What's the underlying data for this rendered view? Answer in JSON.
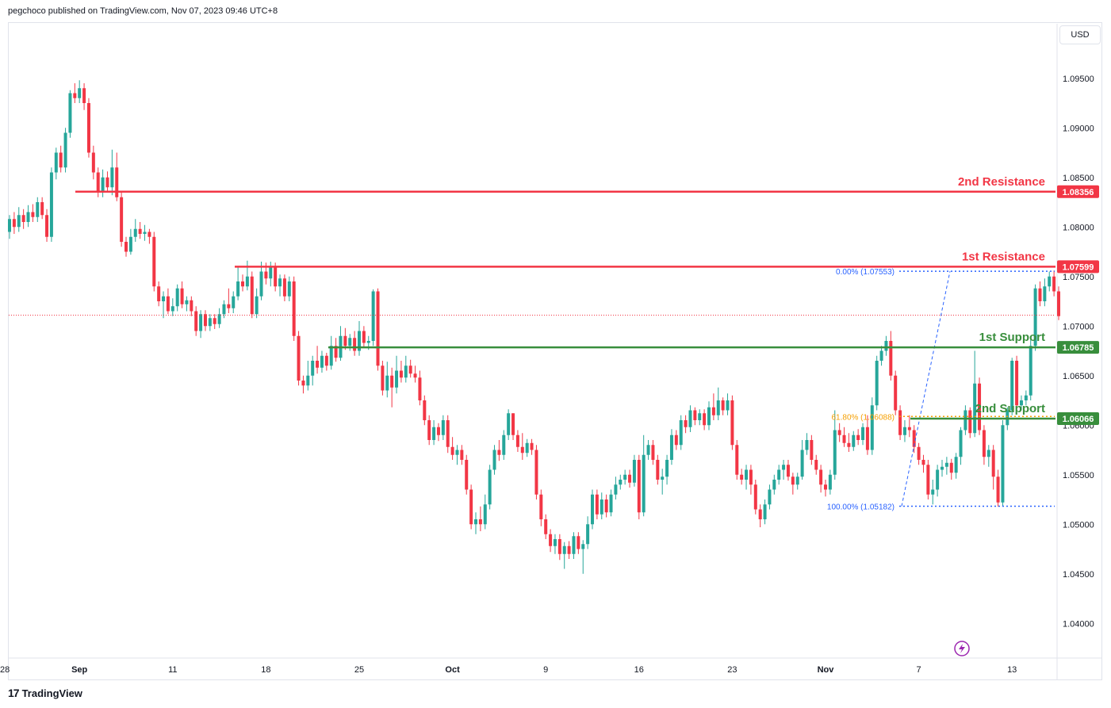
{
  "header": {
    "published": "pegchoco published on TradingView.com, Nov 07, 2023 09:46 UTC+8"
  },
  "currency_button": "USD",
  "footer": {
    "brand": "TradingView",
    "logo": "tradingview-logo"
  },
  "chart_data": {
    "type": "candlestick",
    "y_ticks": [
      "1.09500",
      "1.09000",
      "1.08500",
      "1.08000",
      "1.07500",
      "1.07000",
      "1.06500",
      "1.06000",
      "1.05500",
      "1.05000",
      "1.04500",
      "1.04000"
    ],
    "ylim": [
      1.0365,
      1.1005
    ],
    "x_ticks": [
      "28",
      "Sep",
      "11",
      "18",
      "25",
      "Oct",
      "9",
      "16",
      "23",
      "Nov",
      "7",
      "13"
    ],
    "levels": [
      {
        "label": "2nd Resistance",
        "value": "1.08356",
        "price": 1.08356,
        "color": "#f23645"
      },
      {
        "label": "1st Resistance",
        "value": "1.07599",
        "price": 1.07599,
        "color": "#f23645"
      },
      {
        "label": "1st Support",
        "value": "1.06785",
        "price": 1.06785,
        "color": "#388e3c"
      },
      {
        "label": "2nd Support",
        "value": "1.06066",
        "price": 1.06066,
        "color": "#388e3c"
      }
    ],
    "fibonacci": [
      {
        "label": "0.00% (1.07553)",
        "price": 1.07553,
        "color": "#2962ff"
      },
      {
        "label": "61.80% (1.06088)",
        "price": 1.06088,
        "color": "#f59f00"
      },
      {
        "label": "100.00% (1.05182)",
        "price": 1.05182,
        "color": "#2962ff"
      }
    ],
    "last_price": 1.0711,
    "colors": {
      "up": "#26a69a",
      "down": "#f23645"
    },
    "candles": [
      [
        1.0795,
        1.0808,
        1.0788,
        1.0812
      ],
      [
        1.0808,
        1.08,
        1.0793,
        1.0815
      ],
      [
        1.08,
        1.0812,
        1.0795,
        1.082
      ],
      [
        1.0812,
        1.0805,
        1.0798,
        1.0818
      ],
      [
        1.0805,
        1.0815,
        1.08,
        1.0822
      ],
      [
        1.0815,
        1.081,
        1.0805,
        1.0823
      ],
      [
        1.081,
        1.0825,
        1.0805,
        1.083
      ],
      [
        1.0825,
        1.0812,
        1.0808,
        1.083
      ],
      [
        1.0812,
        1.079,
        1.0785,
        1.0818
      ],
      [
        1.079,
        1.0855,
        1.0785,
        1.086
      ],
      [
        1.0855,
        1.0875,
        1.0848,
        1.088
      ],
      [
        1.0875,
        1.086,
        1.0855,
        1.0882
      ],
      [
        1.086,
        1.0895,
        1.0855,
        1.09
      ],
      [
        1.0895,
        1.0935,
        1.089,
        1.0938
      ],
      [
        1.0935,
        1.093,
        1.0925,
        1.0945
      ],
      [
        1.093,
        1.094,
        1.0925,
        1.0948
      ],
      [
        1.094,
        1.0925,
        1.0918,
        1.0945
      ],
      [
        1.0925,
        1.0875,
        1.087,
        1.093
      ],
      [
        1.0875,
        1.0855,
        1.0848,
        1.0882
      ],
      [
        1.0855,
        1.0835,
        1.083,
        1.086
      ],
      [
        1.0835,
        1.085,
        1.083,
        1.0858
      ],
      [
        1.085,
        1.084,
        1.0835,
        1.0856
      ],
      [
        1.084,
        1.086,
        1.0832,
        1.0878
      ],
      [
        1.086,
        1.083,
        1.0826,
        1.0875
      ],
      [
        1.083,
        1.0785,
        1.078,
        1.0835
      ],
      [
        1.0785,
        1.0775,
        1.077,
        1.079
      ],
      [
        1.0775,
        1.079,
        1.0772,
        1.0798
      ],
      [
        1.079,
        1.0798,
        1.0785,
        1.0808
      ],
      [
        1.0798,
        1.0793,
        1.0788,
        1.0805
      ],
      [
        1.0793,
        1.0795,
        1.0786,
        1.0802
      ],
      [
        1.0795,
        1.079,
        1.0783,
        1.0798
      ],
      [
        1.079,
        1.074,
        1.0735,
        1.0795
      ],
      [
        1.074,
        1.0725,
        1.072,
        1.0745
      ],
      [
        1.0725,
        1.073,
        1.0708,
        1.0735
      ],
      [
        1.073,
        1.0715,
        1.0712,
        1.0738
      ],
      [
        1.0715,
        1.072,
        1.071,
        1.0728
      ],
      [
        1.072,
        1.0738,
        1.0715,
        1.0742
      ],
      [
        1.0738,
        1.0722,
        1.0718,
        1.0745
      ],
      [
        1.0722,
        1.0726,
        1.0715,
        1.073
      ],
      [
        1.0726,
        1.0715,
        1.071,
        1.073
      ],
      [
        1.0715,
        1.0695,
        1.069,
        1.072
      ],
      [
        1.0695,
        1.0712,
        1.0688,
        1.0716
      ],
      [
        1.0712,
        1.07,
        1.0695,
        1.0716
      ],
      [
        1.07,
        1.0708,
        1.0695,
        1.0712
      ],
      [
        1.0708,
        1.0702,
        1.0697,
        1.0712
      ],
      [
        1.0702,
        1.0712,
        1.0698,
        1.0718
      ],
      [
        1.0712,
        1.0722,
        1.0708,
        1.0726
      ],
      [
        1.0722,
        1.0718,
        1.0713,
        1.0738
      ],
      [
        1.0718,
        1.073,
        1.0713,
        1.0735
      ],
      [
        1.073,
        1.0745,
        1.0726,
        1.076
      ],
      [
        1.0745,
        1.074,
        1.0735,
        1.0752
      ],
      [
        1.074,
        1.075,
        1.0736,
        1.0766
      ],
      [
        1.075,
        1.0712,
        1.0708,
        1.0755
      ],
      [
        1.0712,
        1.073,
        1.0708,
        1.0738
      ],
      [
        1.073,
        1.0755,
        1.0726,
        1.0765
      ],
      [
        1.0755,
        1.0748,
        1.0742,
        1.0764
      ],
      [
        1.0748,
        1.076,
        1.074,
        1.0765
      ],
      [
        1.076,
        1.074,
        1.0735,
        1.0764
      ],
      [
        1.074,
        1.0748,
        1.073,
        1.0752
      ],
      [
        1.0748,
        1.073,
        1.0725,
        1.0752
      ],
      [
        1.073,
        1.0745,
        1.0725,
        1.075
      ],
      [
        1.0745,
        1.069,
        1.0685,
        1.075
      ],
      [
        1.069,
        1.0645,
        1.064,
        1.0695
      ],
      [
        1.0645,
        1.064,
        1.0632,
        1.065
      ],
      [
        1.064,
        1.065,
        1.0635,
        1.0665
      ],
      [
        1.065,
        1.0665,
        1.064,
        1.067
      ],
      [
        1.0665,
        1.0658,
        1.0652,
        1.068
      ],
      [
        1.0658,
        1.067,
        1.0653,
        1.0675
      ],
      [
        1.067,
        1.066,
        1.0655,
        1.0673
      ],
      [
        1.066,
        1.068,
        1.0656,
        1.069
      ],
      [
        1.068,
        1.0668,
        1.0664,
        1.0688
      ],
      [
        1.0668,
        1.069,
        1.0665,
        1.07
      ],
      [
        1.069,
        1.068,
        1.0676,
        1.0698
      ],
      [
        1.068,
        1.0688,
        1.0675,
        1.0692
      ],
      [
        1.0688,
        1.0675,
        1.067,
        1.0695
      ],
      [
        1.0675,
        1.0695,
        1.067,
        1.0705
      ],
      [
        1.0695,
        1.0683,
        1.0678,
        1.07
      ],
      [
        1.0683,
        1.0685,
        1.0676,
        1.069
      ],
      [
        1.0685,
        1.0735,
        1.068,
        1.0737
      ],
      [
        1.0735,
        1.066,
        1.0655,
        1.0738
      ],
      [
        1.066,
        1.0635,
        1.063,
        1.0665
      ],
      [
        1.0635,
        1.065,
        1.0628,
        1.0664
      ],
      [
        1.065,
        1.0638,
        1.0618,
        1.0658
      ],
      [
        1.0638,
        1.0655,
        1.0632,
        1.067
      ],
      [
        1.0655,
        1.0648,
        1.0643,
        1.0665
      ],
      [
        1.0648,
        1.066,
        1.0643,
        1.067
      ],
      [
        1.066,
        1.0652,
        1.0648,
        1.0666
      ],
      [
        1.0652,
        1.0648,
        1.0643,
        1.066
      ],
      [
        1.0648,
        1.0625,
        1.062,
        1.0655
      ],
      [
        1.0625,
        1.0605,
        1.06,
        1.063
      ],
      [
        1.0605,
        1.0585,
        1.058,
        1.061
      ],
      [
        1.0585,
        1.0598,
        1.058,
        1.0605
      ],
      [
        1.0598,
        1.059,
        1.0584,
        1.0602
      ],
      [
        1.059,
        1.0605,
        1.0585,
        1.061
      ],
      [
        1.0605,
        1.0578,
        1.0572,
        1.061
      ],
      [
        1.0578,
        1.057,
        1.0565,
        1.0588
      ],
      [
        1.057,
        1.0575,
        1.056,
        1.058
      ],
      [
        1.0575,
        1.0565,
        1.056,
        1.058
      ],
      [
        1.0565,
        1.0535,
        1.053,
        1.057
      ],
      [
        1.0535,
        1.05,
        1.0495,
        1.054
      ],
      [
        1.05,
        1.0505,
        1.049,
        1.0512
      ],
      [
        1.0505,
        1.05,
        1.0493,
        1.0518
      ],
      [
        1.05,
        1.052,
        1.0495,
        1.053
      ],
      [
        1.052,
        1.0555,
        1.0515,
        1.056
      ],
      [
        1.0555,
        1.0575,
        1.055,
        1.058
      ],
      [
        1.0575,
        1.057,
        1.0564,
        1.0585
      ],
      [
        1.057,
        1.059,
        1.0565,
        1.0595
      ],
      [
        1.059,
        1.0612,
        1.0585,
        1.0616
      ],
      [
        1.0612,
        1.059,
        1.0585,
        1.0612
      ],
      [
        1.059,
        1.0578,
        1.0573,
        1.0595
      ],
      [
        1.0578,
        1.0572,
        1.0565,
        1.0592
      ],
      [
        1.0572,
        1.0582,
        1.0568,
        1.0586
      ],
      [
        1.0582,
        1.0575,
        1.057,
        1.0586
      ],
      [
        1.0575,
        1.053,
        1.0525,
        1.058
      ],
      [
        1.053,
        1.0505,
        1.0498,
        1.0535
      ],
      [
        1.0505,
        1.049,
        1.0485,
        1.051
      ],
      [
        1.049,
        1.0478,
        1.0472,
        1.0495
      ],
      [
        1.0478,
        1.0485,
        1.047,
        1.049
      ],
      [
        1.0485,
        1.047,
        1.0464,
        1.049
      ],
      [
        1.047,
        1.0478,
        1.0455,
        1.0482
      ],
      [
        1.0478,
        1.047,
        1.0465,
        1.0483
      ],
      [
        1.047,
        1.0488,
        1.0465,
        1.0492
      ],
      [
        1.0488,
        1.0475,
        1.047,
        1.0492
      ],
      [
        1.0475,
        1.048,
        1.045,
        1.0484
      ],
      [
        1.048,
        1.05,
        1.0475,
        1.0508
      ],
      [
        1.05,
        1.053,
        1.0495,
        1.0535
      ],
      [
        1.053,
        1.051,
        1.0505,
        1.0535
      ],
      [
        1.051,
        1.0525,
        1.0505,
        1.0532
      ],
      [
        1.0525,
        1.0512,
        1.0507,
        1.053
      ],
      [
        1.0512,
        1.053,
        1.0508,
        1.0535
      ],
      [
        1.053,
        1.054,
        1.0525,
        1.0548
      ],
      [
        1.054,
        1.0545,
        1.0535,
        1.055
      ],
      [
        1.0545,
        1.055,
        1.054,
        1.0555
      ],
      [
        1.055,
        1.0542,
        1.0537,
        1.0555
      ],
      [
        1.0542,
        1.0565,
        1.0538,
        1.057
      ],
      [
        1.0565,
        1.0512,
        1.0505,
        1.057
      ],
      [
        1.0512,
        1.057,
        1.0508,
        1.059
      ],
      [
        1.057,
        1.058,
        1.0565,
        1.0585
      ],
      [
        1.058,
        1.0565,
        1.056,
        1.0585
      ],
      [
        1.0565,
        1.0545,
        1.054,
        1.057
      ],
      [
        1.0545,
        1.0548,
        1.053,
        1.0556
      ],
      [
        1.0548,
        1.0565,
        1.054,
        1.057
      ],
      [
        1.0565,
        1.059,
        1.056,
        1.0596
      ],
      [
        1.059,
        1.058,
        1.0575,
        1.0595
      ],
      [
        1.058,
        1.0605,
        1.0575,
        1.061
      ],
      [
        1.0605,
        1.0598,
        1.0592,
        1.061
      ],
      [
        1.0598,
        1.0615,
        1.0593,
        1.062
      ],
      [
        1.0615,
        1.0605,
        1.06,
        1.0618
      ],
      [
        1.0605,
        1.0612,
        1.06,
        1.0616
      ],
      [
        1.0612,
        1.06,
        1.0595,
        1.0616
      ],
      [
        1.06,
        1.0618,
        1.0595,
        1.0624
      ],
      [
        1.0618,
        1.061,
        1.0605,
        1.0632
      ],
      [
        1.061,
        1.0625,
        1.0605,
        1.0638
      ],
      [
        1.0625,
        1.0615,
        1.061,
        1.0628
      ],
      [
        1.0615,
        1.0625,
        1.061,
        1.0632
      ],
      [
        1.0625,
        1.058,
        1.0575,
        1.063
      ],
      [
        1.058,
        1.055,
        1.0545,
        1.0585
      ],
      [
        1.055,
        1.0545,
        1.054,
        1.0556
      ],
      [
        1.0545,
        1.0555,
        1.0535,
        1.056
      ],
      [
        1.0555,
        1.054,
        1.053,
        1.056
      ],
      [
        1.054,
        1.0515,
        1.051,
        1.0545
      ],
      [
        1.0515,
        1.0505,
        1.0497,
        1.052
      ],
      [
        1.0505,
        1.052,
        1.05,
        1.0525
      ],
      [
        1.052,
        1.0535,
        1.0515,
        1.054
      ],
      [
        1.0535,
        1.0545,
        1.053,
        1.055
      ],
      [
        1.0545,
        1.0555,
        1.054,
        1.056
      ],
      [
        1.0555,
        1.056,
        1.0545,
        1.0565
      ],
      [
        1.056,
        1.0548,
        1.0544,
        1.0565
      ],
      [
        1.0548,
        1.054,
        1.053,
        1.0552
      ],
      [
        1.054,
        1.0548,
        1.0535,
        1.0552
      ],
      [
        1.0548,
        1.0575,
        1.0545,
        1.0585
      ],
      [
        1.0575,
        1.0585,
        1.057,
        1.0592
      ],
      [
        1.0585,
        1.0565,
        1.056,
        1.059
      ],
      [
        1.0565,
        1.0555,
        1.055,
        1.057
      ],
      [
        1.0555,
        1.054,
        1.0532,
        1.056
      ],
      [
        1.054,
        1.0535,
        1.0528,
        1.0545
      ],
      [
        1.0535,
        1.055,
        1.053,
        1.0555
      ],
      [
        1.055,
        1.0595,
        1.0545,
        1.0615
      ],
      [
        1.0595,
        1.059,
        1.0583,
        1.0602
      ],
      [
        1.059,
        1.0582,
        1.0578,
        1.0598
      ],
      [
        1.0582,
        1.0578,
        1.0573,
        1.0592
      ],
      [
        1.0578,
        1.059,
        1.0574,
        1.0594
      ],
      [
        1.059,
        1.0585,
        1.058,
        1.0596
      ],
      [
        1.0585,
        1.0598,
        1.058,
        1.0602
      ],
      [
        1.0598,
        1.0575,
        1.057,
        1.061
      ],
      [
        1.0575,
        1.062,
        1.057,
        1.0628
      ],
      [
        1.062,
        1.0665,
        1.0615,
        1.067
      ],
      [
        1.0665,
        1.0675,
        1.066,
        1.068
      ],
      [
        1.0675,
        1.0685,
        1.067,
        1.069
      ],
      [
        1.0685,
        1.065,
        1.0645,
        1.0695
      ],
      [
        1.065,
        1.0615,
        1.061,
        1.0655
      ],
      [
        1.0615,
        1.059,
        1.0585,
        1.062
      ],
      [
        1.059,
        1.0598,
        1.0583,
        1.0605
      ],
      [
        1.0598,
        1.0595,
        1.0588,
        1.061
      ],
      [
        1.0595,
        1.0578,
        1.0572,
        1.06
      ],
      [
        1.0578,
        1.0565,
        1.056,
        1.0582
      ],
      [
        1.0565,
        1.056,
        1.0552,
        1.057
      ],
      [
        1.056,
        1.053,
        1.0525,
        1.0565
      ],
      [
        1.053,
        1.0535,
        1.052,
        1.0545
      ],
      [
        1.0535,
        1.0555,
        1.0528,
        1.056
      ],
      [
        1.0555,
        1.0558,
        1.0548,
        1.0565
      ],
      [
        1.0558,
        1.0562,
        1.055,
        1.0568
      ],
      [
        1.0562,
        1.0552,
        1.0545,
        1.0566
      ],
      [
        1.0552,
        1.0568,
        1.0546,
        1.0572
      ],
      [
        1.0568,
        1.0595,
        1.056,
        1.0598
      ],
      [
        1.0595,
        1.0615,
        1.059,
        1.062
      ],
      [
        1.0615,
        1.0592,
        1.0587,
        1.0618
      ],
      [
        1.0592,
        1.0642,
        1.0588,
        1.0675
      ],
      [
        1.0642,
        1.0595,
        1.059,
        1.0648
      ],
      [
        1.0595,
        1.0568,
        1.056,
        1.06
      ],
      [
        1.0568,
        1.0575,
        1.0558,
        1.058
      ],
      [
        1.0575,
        1.0548,
        1.0535,
        1.058
      ],
      [
        1.0548,
        1.0522,
        1.0518,
        1.0555
      ],
      [
        1.0522,
        1.06,
        1.0518,
        1.0605
      ],
      [
        1.06,
        1.0615,
        1.0595,
        1.0618
      ],
      [
        1.0615,
        1.0665,
        1.061,
        1.0668
      ],
      [
        1.0665,
        1.062,
        1.0615,
        1.067
      ],
      [
        1.062,
        1.0625,
        1.0615,
        1.063
      ],
      [
        1.0625,
        1.063,
        1.062,
        1.0635
      ],
      [
        1.063,
        1.068,
        1.0625,
        1.069
      ],
      [
        1.068,
        1.0738,
        1.0675,
        1.0742
      ],
      [
        1.0738,
        1.0725,
        1.072,
        1.0745
      ],
      [
        1.0725,
        1.074,
        1.072,
        1.0748
      ],
      [
        1.074,
        1.075,
        1.0735,
        1.0755
      ],
      [
        1.075,
        1.0735,
        1.073,
        1.0756
      ],
      [
        1.0735,
        1.071,
        1.0706,
        1.074
      ]
    ]
  }
}
